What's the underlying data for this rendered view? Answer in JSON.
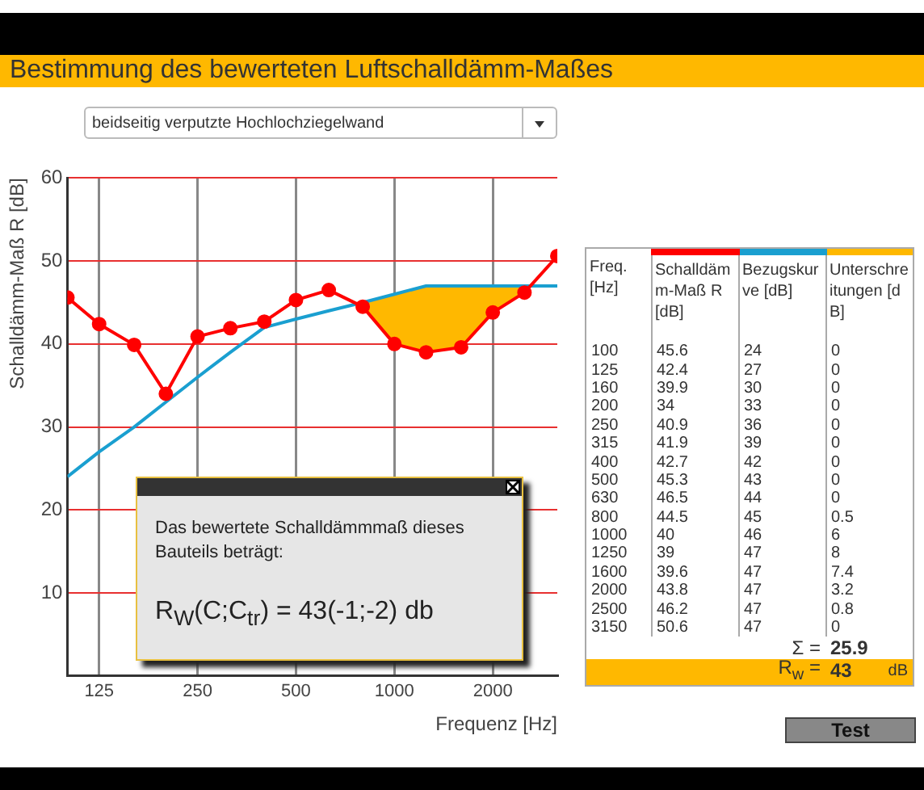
{
  "chart_data": [
    {
      "type": "line",
      "title": "Bestimmung des bewerteten Luftschalldämm-Maßes",
      "xlabel": "Frequenz [Hz]",
      "ylabel": "Schalldämm-Maß R [dB]",
      "x": [
        100,
        125,
        160,
        200,
        250,
        315,
        400,
        500,
        630,
        800,
        1000,
        1250,
        1600,
        2000,
        2500,
        3150
      ],
      "log": "x",
      "xlim": [
        100,
        3150
      ],
      "xticks": [
        125,
        250,
        500,
        1000,
        2000
      ],
      "ylim": [
        0,
        60
      ],
      "yticks": [
        10,
        20,
        30,
        40,
        50,
        60
      ],
      "grid": true,
      "legend": false,
      "series": [
        {
          "color": "#ff0000",
          "marker": "circle",
          "values": [
            45.6,
            42.4,
            39.9,
            34,
            40.9,
            41.9,
            42.7,
            45.3,
            46.5,
            44.5,
            40,
            39,
            39.6,
            43.8,
            46.2,
            50.6
          ]
        },
        {
          "color": "#1a9fd0",
          "marker": "none",
          "values": [
            24,
            27,
            30,
            33,
            36,
            39,
            42,
            43,
            44,
            45,
            46,
            47,
            47,
            47,
            47,
            47
          ],
          "lower": [
            null,
            null,
            null,
            null,
            null,
            null,
            null,
            null,
            null,
            44.5,
            40,
            39,
            39.6,
            43.8,
            46.2,
            null
          ],
          "upper": [
            null,
            null,
            null,
            null,
            null,
            null,
            null,
            null,
            null,
            45,
            46,
            47,
            47,
            47,
            47,
            null
          ]
        }
      ],
      "annotations": [
        "beidseitig verputzte Hochlochziegelwand",
        "Das bewertete Schalldämmmaß dieses Bauteils beträgt:",
        "R$_{W}$(C;C$_{tr}$) = 43(-1;-2) db",
        "Test"
      ]
    },
    {
      "type": "heatmap",
      "ylabel": "Freq. [Hz]",
      "data_labels": true,
      "categories": [
        "Schalldämm-Maß R [dB]",
        "Bezugskurve [dB]",
        "Unterschreitungen [dB]"
      ],
      "y_categories": [
        "100",
        "125",
        "160",
        "200",
        "250",
        "315",
        "400",
        "500",
        "630",
        "800",
        "1000",
        "1250",
        "1600",
        "2000",
        "2500",
        "3150"
      ],
      "cells": [
        [
          45.6,
          24,
          0
        ],
        [
          42.4,
          27,
          0
        ],
        [
          39.9,
          30,
          0
        ],
        [
          34,
          33,
          0
        ],
        [
          40.9,
          36,
          0
        ],
        [
          41.9,
          39,
          0
        ],
        [
          42.7,
          42,
          0
        ],
        [
          45.3,
          43,
          0
        ],
        [
          46.5,
          44,
          0
        ],
        [
          44.5,
          45,
          0.5
        ],
        [
          40,
          46,
          6
        ],
        [
          39,
          47,
          8
        ],
        [
          39.6,
          47,
          7.4
        ],
        [
          43.8,
          47,
          3.2
        ],
        [
          46.2,
          47,
          0.8
        ],
        [
          50.6,
          47,
          0
        ]
      ],
      "annotations": [
        "Σ =",
        "25.9",
        "R$_{w}$ =",
        "43",
        "dB"
      ]
    }
  ]
}
